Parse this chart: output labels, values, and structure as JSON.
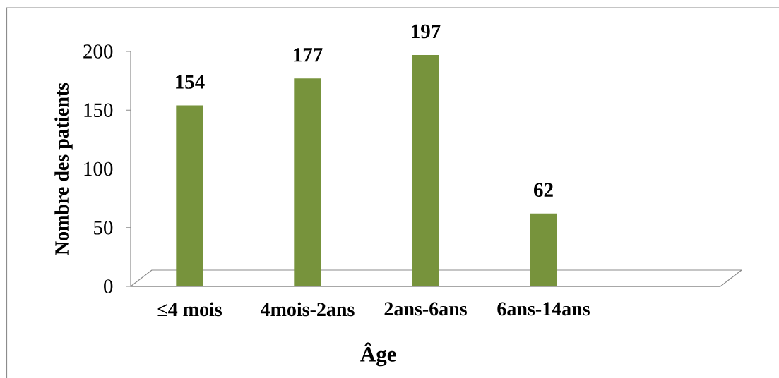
{
  "chart_data": {
    "type": "bar",
    "xlabel": "Âge",
    "ylabel": "Nombre des patients",
    "categories": [
      "≤4 mois",
      "4mois-2ans",
      "2ans-6ans",
      "6ans-14ans",
      null
    ],
    "values": [
      154,
      177,
      197,
      62,
      null
    ],
    "color": "#77933c",
    "ylim": [
      0,
      200
    ],
    "yticks": [
      0,
      50,
      100,
      150,
      200
    ],
    "data_labels": true
  }
}
